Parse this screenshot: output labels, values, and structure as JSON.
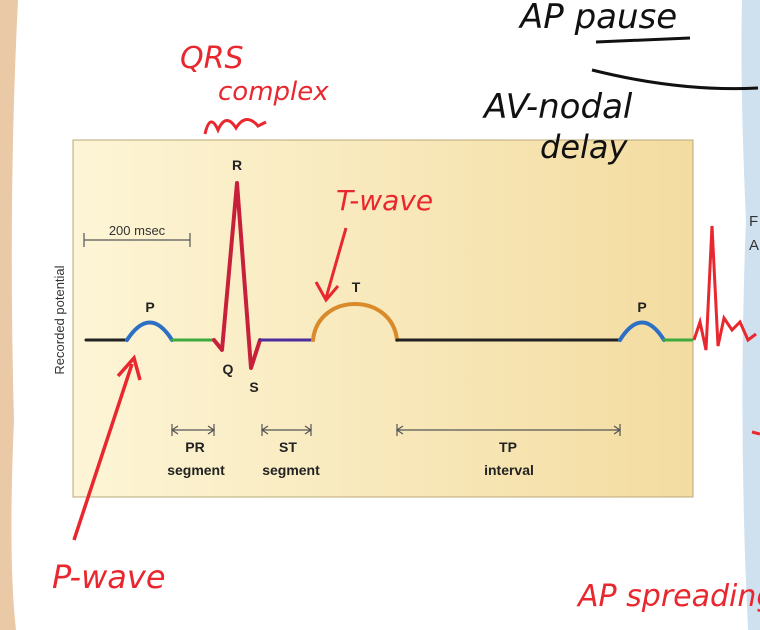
{
  "diagram": {
    "axis_label": "Recorded potential",
    "scale_bar": "200 msec",
    "waves": {
      "p": "P",
      "q": "Q",
      "r": "R",
      "s": "S",
      "t": "T",
      "p2": "P"
    },
    "segments": [
      {
        "name": "PR",
        "sub": "segment"
      },
      {
        "name": "ST",
        "sub": "segment"
      },
      {
        "name": "TP",
        "sub": "interval"
      }
    ],
    "colors": {
      "panel": "#f8eab8",
      "p_wave": "#2d6fc4",
      "pr_segment": "#3caa3c",
      "qrs": "#c8203a",
      "st_segment": "#4b2d9c",
      "t_wave": "#d98a2b",
      "baseline": "#222222",
      "annotation_red": "#e8282e"
    }
  },
  "annotations": {
    "ap_pause": "AP pause",
    "av_nodal_delay_line1": "AV-nodal",
    "av_nodal_delay_line2": "delay",
    "qrs_line1": "QRS",
    "qrs_line2": "complex",
    "t_wave": "T-wave",
    "p_wave": "P-wave",
    "ap_spreading": "AP spreading"
  },
  "edge_text": {
    "right_f": "F",
    "right_a": "A"
  }
}
